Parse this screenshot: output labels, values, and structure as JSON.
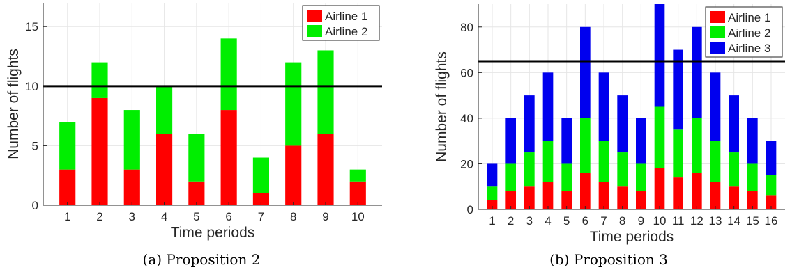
{
  "colors": {
    "airline1": "#ff0000",
    "airline2": "#00ee00",
    "airline3": "#0000ee",
    "capacity_line": "#000000",
    "grid": "#e6e6e6"
  },
  "chart_data": [
    {
      "type": "bar",
      "stacked": true,
      "caption": "(a) Proposition 2",
      "xlabel": "Time periods",
      "ylabel": "Number of flights",
      "categories": [
        "1",
        "2",
        "3",
        "4",
        "5",
        "6",
        "7",
        "8",
        "9",
        "10"
      ],
      "ylim": [
        0,
        17
      ],
      "yticks": [
        0,
        5,
        10,
        15
      ],
      "grid": true,
      "legend_position": "top-right",
      "capacity": 10,
      "series": [
        {
          "name": "Airline 1",
          "color": "#ff0000",
          "values": [
            3,
            9,
            3,
            6,
            2,
            8,
            1,
            5,
            6,
            2
          ]
        },
        {
          "name": "Airline 2",
          "color": "#00ee00",
          "values": [
            4,
            3,
            5,
            4,
            4,
            6,
            3,
            7,
            7,
            1
          ]
        }
      ]
    },
    {
      "type": "bar",
      "stacked": true,
      "caption": "(b) Proposition 3",
      "xlabel": "Time periods",
      "ylabel": "Number of flights",
      "categories": [
        "1",
        "2",
        "3",
        "4",
        "5",
        "6",
        "7",
        "8",
        "9",
        "10",
        "11",
        "12",
        "13",
        "14",
        "15",
        "16"
      ],
      "ylim": [
        0,
        90
      ],
      "yticks": [
        0,
        20,
        40,
        60,
        80
      ],
      "grid": true,
      "legend_position": "top-right",
      "capacity": 65,
      "series": [
        {
          "name": "Airline 1",
          "color": "#ff0000",
          "values": [
            4,
            8,
            10,
            12,
            8,
            16,
            12,
            10,
            8,
            18,
            14,
            16,
            12,
            10,
            8,
            6
          ]
        },
        {
          "name": "Airline 2",
          "color": "#00ee00",
          "values": [
            6,
            12,
            15,
            18,
            12,
            24,
            18,
            15,
            12,
            27,
            21,
            24,
            18,
            15,
            12,
            9
          ]
        },
        {
          "name": "Airline 3",
          "color": "#0000ee",
          "values": [
            10,
            20,
            25,
            30,
            20,
            40,
            30,
            25,
            20,
            45,
            35,
            40,
            30,
            25,
            20,
            15
          ]
        }
      ]
    }
  ]
}
